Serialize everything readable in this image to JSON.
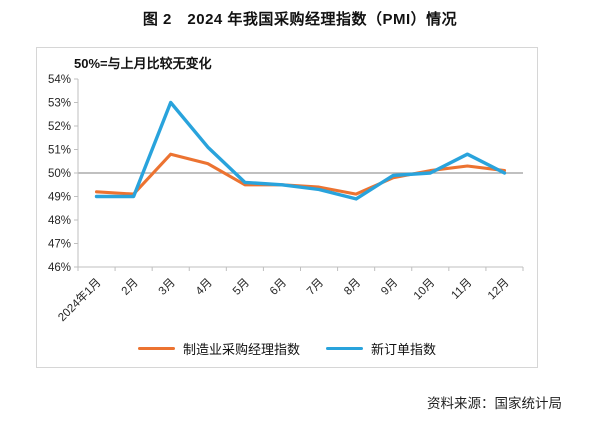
{
  "title": "图 2　2024 年我国采购经理指数（PMI）情况",
  "source": "资料来源：国家统计局",
  "chart_data": {
    "type": "line",
    "title": "图 2　2024 年我国采购经理指数（PMI）情况",
    "note": "50%=与上月比较无变化",
    "categories": [
      "2024年1月",
      "2月",
      "3月",
      "4月",
      "5月",
      "6月",
      "7月",
      "8月",
      "9月",
      "10月",
      "11月",
      "12月"
    ],
    "series": [
      {
        "name": "制造业采购经理指数",
        "color": "#EC7331",
        "values": [
          49.2,
          49.1,
          50.8,
          50.4,
          49.5,
          49.5,
          49.4,
          49.1,
          49.8,
          50.1,
          50.3,
          50.1
        ]
      },
      {
        "name": "新订单指数",
        "color": "#29A3DC",
        "values": [
          49.0,
          49.0,
          53.0,
          51.1,
          49.6,
          49.5,
          49.3,
          48.9,
          49.9,
          50.0,
          50.8,
          50.0
        ]
      }
    ],
    "ylabel": "",
    "xlabel": "",
    "ylim": [
      46,
      54
    ],
    "ytick_step": 1,
    "ytick_suffix": "%",
    "reference_line": {
      "value": 50,
      "label_meaning": "50%=与上月比较无变化",
      "color": "#9b9b9b"
    },
    "axis_color": "#bfbfbf",
    "tick_label_color": "#262626",
    "grid": false,
    "legend_position": "bottom"
  }
}
